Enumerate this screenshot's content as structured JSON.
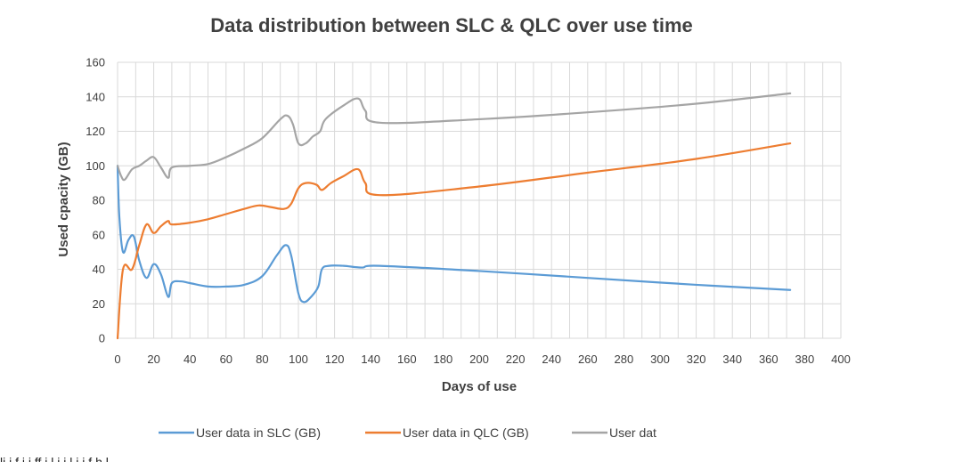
{
  "chart_data": {
    "type": "line",
    "title": "Data distribution between SLC & QLC over use time",
    "xlabel": "Days of use",
    "ylabel": "Used cpacity (GB)",
    "xlim": [
      0,
      400
    ],
    "ylim": [
      0,
      160
    ],
    "xticks": [
      0,
      20,
      40,
      60,
      80,
      100,
      120,
      140,
      160,
      180,
      200,
      220,
      240,
      260,
      280,
      300,
      320,
      340,
      360,
      380,
      400
    ],
    "yticks": [
      0,
      20,
      40,
      60,
      80,
      100,
      120,
      140,
      160
    ],
    "grid": true,
    "legend_position": "bottom",
    "series": [
      {
        "name": "User data in SLC (GB)",
        "color": "#5b9bd5",
        "x": [
          0,
          1,
          3,
          6,
          9,
          12,
          16,
          20,
          24,
          28,
          30,
          35,
          40,
          50,
          60,
          70,
          80,
          88,
          93,
          96,
          100,
          103,
          107,
          111,
          113,
          117,
          125,
          135,
          145,
          200,
          260,
          320,
          372
        ],
        "y": [
          100,
          70,
          50,
          57,
          59,
          45,
          35,
          43,
          37,
          24,
          32,
          33,
          32,
          30,
          30,
          31,
          36,
          48,
          54,
          48,
          26,
          21,
          24,
          30,
          40,
          42,
          42,
          41,
          42,
          39,
          35,
          31,
          28
        ]
      },
      {
        "name": "User data in QLC (GB)",
        "color": "#ed7d31",
        "x": [
          0,
          3,
          8,
          12,
          16,
          20,
          24,
          28,
          30,
          40,
          50,
          60,
          70,
          78,
          85,
          92,
          96,
          100,
          104,
          110,
          113,
          118,
          125,
          133,
          137,
          145,
          200,
          260,
          320,
          372
        ],
        "y": [
          0,
          40,
          40,
          54,
          66,
          61,
          65,
          68,
          66,
          67,
          69,
          72,
          75,
          77,
          76,
          75,
          78,
          87,
          90,
          89,
          86,
          90,
          94,
          98,
          90,
          83,
          88,
          96,
          104,
          113
        ]
      },
      {
        "name": "User data in total (GB)",
        "color": "#a5a5a5",
        "x": [
          0,
          2,
          4,
          8,
          12,
          16,
          20,
          24,
          28,
          30,
          40,
          50,
          60,
          70,
          80,
          90,
          94,
          97,
          100,
          104,
          108,
          112,
          115,
          125,
          133,
          137,
          145,
          200,
          260,
          320,
          372
        ],
        "y": [
          100,
          94,
          92,
          98,
          100,
          103,
          105,
          99,
          93,
          99,
          100,
          101,
          105,
          110,
          116,
          127,
          129,
          124,
          113,
          113,
          117,
          120,
          127,
          135,
          139,
          132,
          125,
          127,
          131,
          136,
          142
        ]
      }
    ],
    "legend_visible_labels": [
      "User data in SLC (GB)",
      "User data in QLC (GB)",
      "User dat"
    ]
  },
  "page": {
    "bottom_text": "li  i  f                          i                    i   ff      i l                 i  i                   l          i  i         f  h   l"
  }
}
